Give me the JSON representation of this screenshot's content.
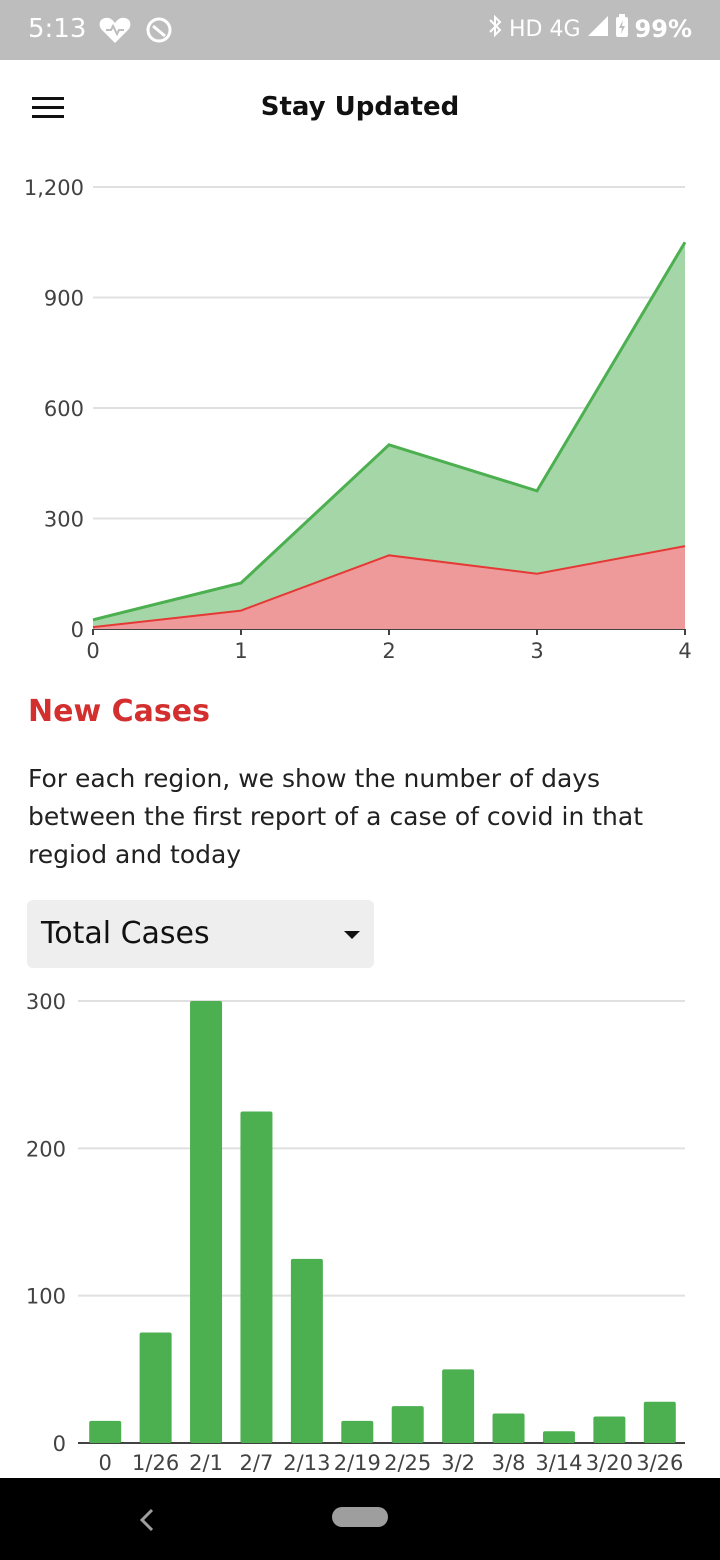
{
  "status_bar": {
    "time": "5:13",
    "network": "HD 4G",
    "battery": "99%",
    "icons": [
      "heart-icon",
      "sync-icon",
      "bluetooth-icon",
      "signal-icon",
      "battery-charging-icon"
    ]
  },
  "app_bar": {
    "title": "Stay Updated",
    "menu_icon": "hamburger-menu-icon"
  },
  "area_chart_y_ticks": [
    "1,200",
    "900",
    "600",
    "300",
    "0"
  ],
  "area_chart_x_ticks": [
    "0",
    "1",
    "2",
    "3",
    "4"
  ],
  "section": {
    "title": "New Cases",
    "description": "For each region, we show the number of days between the first report of a case of covid in that regiod and today"
  },
  "dropdown": {
    "selected": "Total Cases"
  },
  "bar_chart_y_ticks": [
    "300",
    "200",
    "100",
    "0"
  ],
  "colors": {
    "green": "#4caf50",
    "green_fill": "#a5d6a7",
    "red": "#e53935",
    "red_fill": "#ef9a9a",
    "title_red": "#d32f2f"
  },
  "chart_data": [
    {
      "type": "area",
      "x": [
        0,
        1,
        2,
        3,
        4
      ],
      "series": [
        {
          "values": [
            25,
            125,
            500,
            375,
            1050
          ]
        },
        {
          "values": [
            5,
            50,
            200,
            150,
            225
          ]
        }
      ],
      "ylim": [
        0,
        1200
      ],
      "xlim": [
        0,
        4
      ],
      "grid": true
    },
    {
      "type": "bar",
      "categories": [
        "0",
        "1/26",
        "2/1",
        "2/7",
        "2/13",
        "2/19",
        "2/25",
        "3/2",
        "3/8",
        "3/14",
        "3/20",
        "3/26"
      ],
      "values": [
        15,
        75,
        300,
        225,
        125,
        15,
        25,
        50,
        20,
        8,
        18,
        28
      ],
      "ylim": [
        0,
        300
      ],
      "grid": true
    }
  ]
}
